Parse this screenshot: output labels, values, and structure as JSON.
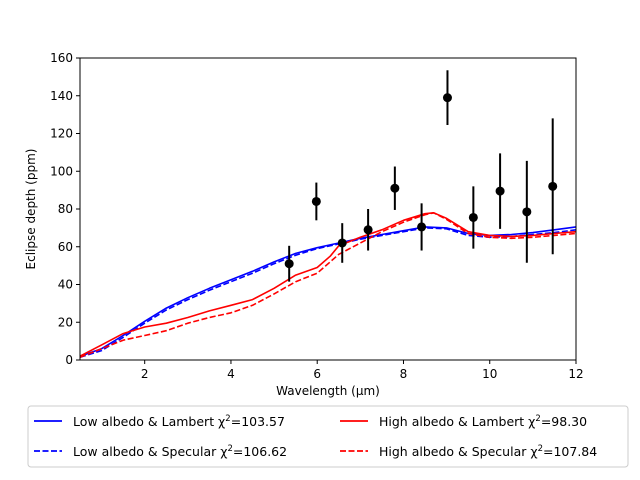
{
  "chart_data": {
    "type": "line",
    "title": "",
    "xlabel": "Wavelength (μm)",
    "ylabel": "Eclipse depth (ppm)",
    "xlim": [
      0.5,
      12
    ],
    "ylim": [
      0,
      160
    ],
    "x_ticks": [
      2,
      4,
      6,
      8,
      10,
      12
    ],
    "y_ticks": [
      0,
      20,
      40,
      60,
      80,
      100,
      120,
      140,
      160
    ],
    "grid": false,
    "legend_placement": "below plot, two columns",
    "series": [
      {
        "name": "Low albedo & Lambert",
        "legend_value": "103.57",
        "color": "#0000ff",
        "dash": "solid",
        "x": [
          0.5,
          1.0,
          1.5,
          2.0,
          2.5,
          3.0,
          3.5,
          4.0,
          4.5,
          5.0,
          5.5,
          6.0,
          6.5,
          7.0,
          7.5,
          8.0,
          8.5,
          9.0,
          9.5,
          10.0,
          10.5,
          11.0,
          11.5,
          12.0
        ],
        "y": [
          2,
          6,
          13,
          20.5,
          27.5,
          33,
          38,
          42.5,
          47,
          52,
          56.5,
          59.5,
          62,
          64.5,
          66.5,
          68.5,
          70.5,
          70,
          67,
          66,
          66.5,
          67.5,
          69,
          70.5
        ]
      },
      {
        "name": "Low albedo & Specular",
        "legend_value": "106.62",
        "color": "#0000ff",
        "dash": "dashed",
        "x": [
          0.5,
          1.0,
          1.5,
          2.0,
          2.5,
          3.0,
          3.5,
          4.0,
          4.5,
          5.0,
          5.5,
          6.0,
          6.5,
          7.0,
          7.5,
          8.0,
          8.5,
          9.0,
          9.5,
          10.0,
          10.5,
          11.0,
          11.5,
          12.0
        ],
        "y": [
          1.5,
          5,
          12,
          19.5,
          26.5,
          32,
          37,
          41.5,
          46,
          51,
          55.5,
          59,
          61.5,
          64,
          66,
          68,
          70,
          69.5,
          66,
          65,
          65.5,
          66.5,
          67.5,
          69
        ]
      },
      {
        "name": "High albedo & Lambert",
        "legend_value": "98.30",
        "color": "#ff0000",
        "dash": "solid",
        "x": [
          0.5,
          1.0,
          1.5,
          2.0,
          2.5,
          3.0,
          3.5,
          4.0,
          4.5,
          5.0,
          5.5,
          6.0,
          6.3,
          6.5,
          7.0,
          7.5,
          8.0,
          8.5,
          8.7,
          9.0,
          9.5,
          10.0,
          10.5,
          11.0,
          11.5,
          12.0
        ],
        "y": [
          2,
          8,
          14,
          17.5,
          19.5,
          22.5,
          26,
          29,
          32,
          38,
          45,
          49,
          55,
          60.5,
          65,
          69,
          74,
          77.5,
          78,
          75,
          68,
          66,
          65.5,
          66,
          67,
          68
        ]
      },
      {
        "name": "High albedo & Specular",
        "legend_value": "107.84",
        "color": "#ff0000",
        "dash": "dashed",
        "x": [
          0.5,
          1.0,
          1.5,
          2.0,
          2.5,
          3.0,
          3.5,
          4.0,
          4.5,
          5.0,
          5.5,
          6.0,
          6.3,
          6.5,
          7.0,
          7.5,
          8.0,
          8.5,
          8.7,
          9.0,
          9.5,
          10.0,
          10.5,
          11.0,
          11.5,
          12.0
        ],
        "y": [
          1.5,
          6,
          10.5,
          13,
          15.5,
          19.5,
          22.5,
          25,
          29,
          35,
          41.5,
          46,
          52,
          56,
          62,
          68,
          73,
          77,
          78,
          74.5,
          67,
          65,
          64.5,
          65,
          66,
          67
        ]
      }
    ],
    "observations": {
      "color": "#000000",
      "x": [
        5.35,
        5.98,
        6.58,
        7.18,
        7.8,
        8.42,
        9.02,
        9.62,
        10.24,
        10.86,
        11.46
      ],
      "y": [
        51,
        84,
        62,
        69,
        91,
        70.5,
        139,
        75.5,
        89.5,
        78.5,
        92
      ],
      "yerr": [
        9.5,
        10,
        10.5,
        11,
        11.5,
        12.5,
        14.5,
        16.5,
        20,
        27,
        36
      ]
    }
  }
}
